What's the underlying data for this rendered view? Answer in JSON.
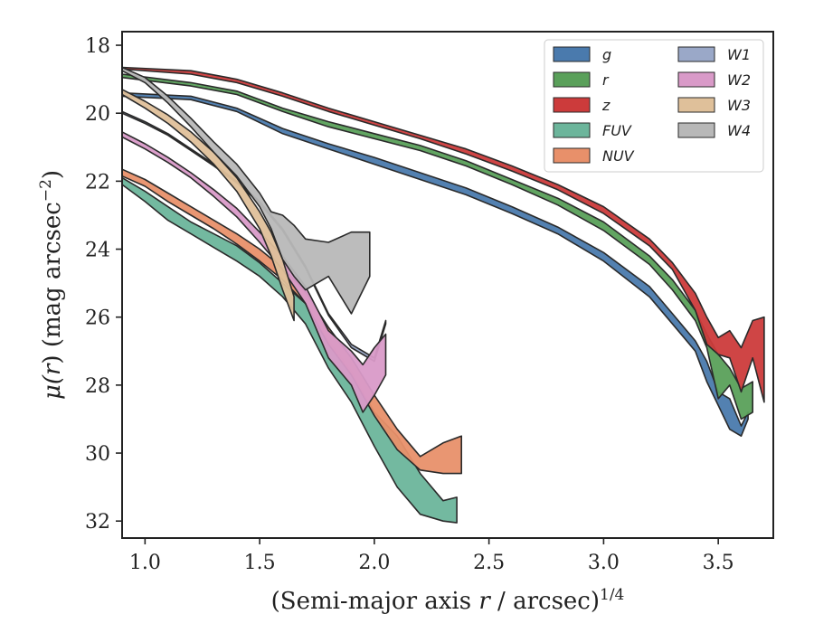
{
  "chart_data": {
    "type": "area",
    "xlabel": "(Semi-major axis r / arcsec)1/4",
    "xlabel_parts": {
      "prefix": "(Semi-major axis ",
      "var": "r",
      "mid": " / arcsec)",
      "sup": "1/4"
    },
    "ylabel": "μ(r) (mag arcsec−2)",
    "ylabel_parts": {
      "pre": "μ(",
      "var": "r",
      "mid": ") (mag arcsec",
      "sup": "−2",
      "post": ")"
    },
    "xlim": [
      0.9,
      3.74
    ],
    "ylim": [
      32.5,
      17.6
    ],
    "y_inverted": true,
    "xticks": [
      1.0,
      1.5,
      2.0,
      2.5,
      3.0,
      3.5
    ],
    "xtick_labels": [
      "1.0",
      "1.5",
      "2.0",
      "2.5",
      "3.0",
      "3.5"
    ],
    "yticks": [
      18,
      20,
      22,
      24,
      26,
      28,
      30,
      32
    ],
    "ytick_labels": [
      "18",
      "20",
      "22",
      "24",
      "26",
      "28",
      "30",
      "32"
    ],
    "legend_position": "upper right, two columns",
    "series": [
      {
        "name": "g",
        "color": "#4a7aad",
        "x": [
          0.9,
          1.2,
          1.4,
          1.6,
          1.8,
          2.0,
          2.2,
          2.4,
          2.6,
          2.8,
          3.0,
          3.2,
          3.3,
          3.4,
          3.45,
          3.5,
          3.55,
          3.6,
          3.63
        ],
        "y1": [
          19.4,
          19.5,
          19.85,
          20.45,
          20.9,
          21.3,
          21.75,
          22.2,
          22.75,
          23.35,
          24.1,
          25.1,
          25.9,
          26.7,
          27.3,
          28.2,
          28.4,
          29.2,
          28.8
        ],
        "y2": [
          19.5,
          19.6,
          19.95,
          20.6,
          21.05,
          21.5,
          21.95,
          22.4,
          22.95,
          23.55,
          24.35,
          25.4,
          26.2,
          27.0,
          27.9,
          28.6,
          29.3,
          29.5,
          29.0
        ]
      },
      {
        "name": "r",
        "color": "#5aa05a",
        "x": [
          0.9,
          1.2,
          1.4,
          1.6,
          1.8,
          2.0,
          2.2,
          2.4,
          2.6,
          2.8,
          3.0,
          3.2,
          3.3,
          3.4,
          3.45,
          3.5,
          3.55,
          3.6,
          3.65
        ],
        "y1": [
          18.85,
          19.1,
          19.35,
          19.85,
          20.25,
          20.6,
          20.95,
          21.4,
          21.95,
          22.5,
          23.2,
          24.2,
          24.9,
          25.8,
          26.5,
          27.1,
          27.5,
          28.1,
          27.9
        ],
        "y2": [
          18.95,
          19.2,
          19.45,
          19.95,
          20.4,
          20.75,
          21.1,
          21.55,
          22.1,
          22.7,
          23.45,
          24.45,
          25.2,
          26.1,
          26.9,
          28.4,
          28.0,
          29.0,
          28.8
        ]
      },
      {
        "name": "z",
        "color": "#cc3b3b",
        "x": [
          0.9,
          1.2,
          1.4,
          1.6,
          1.8,
          2.0,
          2.2,
          2.4,
          2.6,
          2.8,
          3.0,
          3.2,
          3.3,
          3.4,
          3.45,
          3.5,
          3.55,
          3.6,
          3.65,
          3.7
        ],
        "y1": [
          18.65,
          18.75,
          19.0,
          19.4,
          19.85,
          20.25,
          20.65,
          21.05,
          21.55,
          22.1,
          22.75,
          23.7,
          24.4,
          25.3,
          26.0,
          26.6,
          26.4,
          26.9,
          26.1,
          26.0
        ],
        "y2": [
          18.7,
          18.85,
          19.1,
          19.5,
          19.95,
          20.35,
          20.75,
          21.2,
          21.7,
          22.25,
          22.95,
          23.9,
          24.6,
          25.8,
          26.8,
          27.1,
          27.2,
          28.2,
          27.2,
          28.5
        ]
      },
      {
        "name": "FUV",
        "color": "#6cb59b",
        "x": [
          0.9,
          1.0,
          1.1,
          1.2,
          1.3,
          1.4,
          1.5,
          1.6,
          1.7,
          1.8,
          1.9,
          2.0,
          2.1,
          2.2,
          2.3,
          2.36
        ],
        "y1": [
          21.9,
          22.3,
          22.75,
          23.2,
          23.55,
          23.9,
          24.4,
          25.0,
          25.6,
          26.7,
          27.6,
          28.8,
          29.5,
          30.6,
          31.4,
          31.3
        ],
        "y2": [
          22.1,
          22.6,
          23.15,
          23.55,
          23.95,
          24.35,
          24.8,
          25.4,
          26.2,
          27.5,
          28.5,
          29.8,
          31.0,
          31.8,
          32.0,
          32.05
        ]
      },
      {
        "name": "NUV",
        "color": "#e8906a",
        "x": [
          0.9,
          1.0,
          1.1,
          1.2,
          1.3,
          1.4,
          1.5,
          1.6,
          1.7,
          1.8,
          1.9,
          2.0,
          2.1,
          2.2,
          2.3,
          2.38
        ],
        "y1": [
          21.65,
          21.95,
          22.35,
          22.75,
          23.15,
          23.55,
          24.0,
          24.55,
          25.25,
          26.3,
          27.2,
          28.3,
          29.3,
          30.1,
          29.7,
          29.5
        ],
        "y2": [
          21.85,
          22.15,
          22.6,
          23.0,
          23.4,
          23.85,
          24.35,
          24.9,
          25.6,
          26.8,
          27.7,
          28.9,
          29.9,
          30.5,
          30.6,
          30.6
        ]
      },
      {
        "name": "W1",
        "color": "#9aa8c8",
        "x": [
          0.9,
          1.0,
          1.1,
          1.2,
          1.3,
          1.4,
          1.5,
          1.6,
          1.7,
          1.8,
          1.9,
          2.0,
          2.05
        ],
        "y1": [
          19.95,
          20.25,
          20.6,
          21.05,
          21.5,
          22.0,
          22.6,
          23.4,
          24.5,
          25.9,
          26.8,
          27.2,
          26.1
        ],
        "y2": [
          20.0,
          20.3,
          20.65,
          21.1,
          21.55,
          22.05,
          22.65,
          23.45,
          24.55,
          25.95,
          26.9,
          27.3,
          26.2
        ]
      },
      {
        "name": "W2",
        "color": "#d99ac8",
        "x": [
          0.9,
          1.0,
          1.1,
          1.2,
          1.3,
          1.4,
          1.5,
          1.6,
          1.7,
          1.8,
          1.9,
          1.95,
          2.0,
          2.05
        ],
        "y1": [
          20.55,
          20.9,
          21.3,
          21.75,
          22.25,
          22.8,
          23.5,
          24.2,
          25.1,
          26.4,
          27.0,
          27.4,
          26.9,
          26.5
        ],
        "y2": [
          20.7,
          21.05,
          21.45,
          21.9,
          22.45,
          23.05,
          23.8,
          24.6,
          25.6,
          27.2,
          28.0,
          28.8,
          28.3,
          27.7
        ]
      },
      {
        "name": "W3",
        "color": "#dfc09a",
        "x": [
          0.9,
          1.0,
          1.1,
          1.2,
          1.3,
          1.4,
          1.5,
          1.55,
          1.6,
          1.65
        ],
        "y1": [
          19.3,
          19.65,
          20.05,
          20.55,
          21.15,
          21.9,
          22.9,
          23.5,
          24.3,
          25.4
        ],
        "y2": [
          19.45,
          19.85,
          20.3,
          20.85,
          21.5,
          22.3,
          23.4,
          24.2,
          25.2,
          26.1
        ]
      },
      {
        "name": "W4",
        "color": "#b8b8b8",
        "x": [
          0.9,
          1.0,
          1.1,
          1.2,
          1.3,
          1.4,
          1.5,
          1.55,
          1.6,
          1.65,
          1.7,
          1.8,
          1.9,
          1.98
        ],
        "y1": [
          18.65,
          18.95,
          19.5,
          20.15,
          20.85,
          21.5,
          22.35,
          22.9,
          23.0,
          23.3,
          23.7,
          23.8,
          23.5,
          23.5
        ],
        "y2": [
          18.75,
          19.1,
          19.7,
          20.4,
          21.15,
          21.85,
          22.75,
          23.4,
          24.3,
          24.8,
          25.2,
          24.8,
          25.9,
          24.8
        ]
      }
    ]
  }
}
